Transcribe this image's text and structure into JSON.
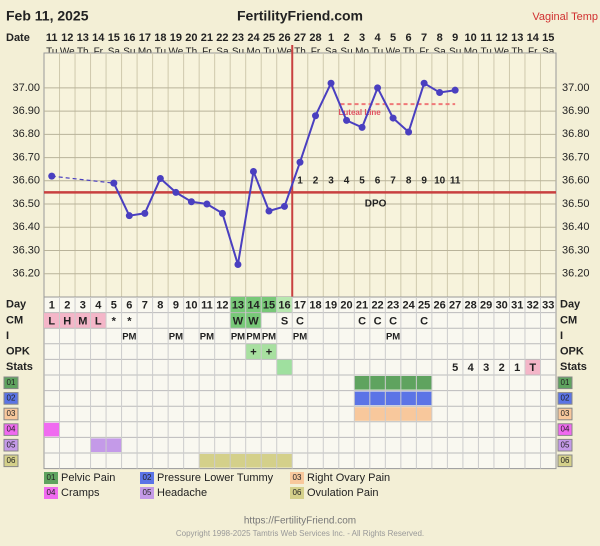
{
  "header": {
    "date": "Feb 11, 2025",
    "site": "FertilityFriend.com",
    "mode": "Vaginal Temp"
  },
  "chart_data": {
    "type": "line",
    "x_label": "Date",
    "dates": [
      11,
      12,
      13,
      14,
      15,
      16,
      17,
      18,
      19,
      20,
      21,
      22,
      23,
      24,
      25,
      26,
      27,
      28,
      1,
      2,
      3,
      4,
      5,
      6,
      7,
      8,
      9,
      10,
      11,
      12,
      13,
      14,
      15
    ],
    "weekdays": [
      "Tu",
      "We",
      "Th",
      "Fr",
      "Sa",
      "Su",
      "Mo",
      "Tu",
      "We",
      "Th",
      "Fr",
      "Sa",
      "Su",
      "Mo",
      "Tu",
      "We",
      "Th",
      "Fr",
      "Sa",
      "Su",
      "Mo",
      "Tu",
      "We",
      "Th",
      "Fr",
      "Sa",
      "Su",
      "Mo",
      "Tu",
      "We",
      "Th",
      "Fr",
      "Sa"
    ],
    "values": [
      36.62,
      null,
      null,
      null,
      36.59,
      36.45,
      36.46,
      36.61,
      36.55,
      36.51,
      36.5,
      36.46,
      36.24,
      36.64,
      36.47,
      36.49,
      36.68,
      36.88,
      37.02,
      36.86,
      36.83,
      37.0,
      36.87,
      36.81,
      37.02,
      36.98,
      36.99,
      null,
      null,
      null,
      null,
      null,
      null
    ],
    "color": "#4a3fc0",
    "ylim": [
      36.1,
      37.15
    ],
    "yticks": [
      {
        "value": 36.2,
        "label": "36.20"
      },
      {
        "value": 36.3,
        "label": "36.30"
      },
      {
        "value": 36.4,
        "label": "36.40"
      },
      {
        "value": 36.5,
        "label": "36.50"
      },
      {
        "value": 36.6,
        "label": "36.60"
      },
      {
        "value": 36.7,
        "label": "36.70"
      },
      {
        "value": 36.8,
        "label": "36.80"
      },
      {
        "value": 36.9,
        "label": "36.90"
      },
      {
        "value": 37,
        "label": "37.00"
      }
    ],
    "grid": true,
    "coverline": 36.55,
    "ovulation_day": 16,
    "luteal_line": {
      "label": "Luteal Line",
      "value": 36.93
    },
    "dpo_label": "DPO",
    "dpo": [
      null,
      null,
      null,
      null,
      null,
      null,
      null,
      null,
      null,
      null,
      null,
      null,
      null,
      null,
      null,
      null,
      1,
      2,
      3,
      4,
      5,
      6,
      7,
      8,
      9,
      10,
      11,
      null,
      null,
      null,
      null,
      null,
      null
    ]
  },
  "table": {
    "labels": {
      "day": "Day",
      "cm": "CM",
      "intercourse": "I",
      "opk": "OPK",
      "stats": "Stats"
    },
    "days": [
      1,
      2,
      3,
      4,
      5,
      6,
      7,
      8,
      9,
      10,
      11,
      12,
      13,
      14,
      15,
      16,
      17,
      18,
      19,
      20,
      21,
      22,
      23,
      24,
      25,
      26,
      27,
      28,
      29,
      30,
      31,
      32,
      33
    ],
    "day_colors": [
      null,
      null,
      null,
      null,
      null,
      null,
      null,
      null,
      null,
      null,
      null,
      null,
      "#78c878",
      "#78c878",
      "#78c878",
      "#b8e8b0",
      null,
      null,
      null,
      null,
      null,
      null,
      null,
      null,
      null,
      null,
      null,
      null,
      null,
      null,
      null,
      null,
      null
    ],
    "cm": [
      "L",
      "H",
      "M",
      "L",
      "*",
      "*",
      null,
      null,
      null,
      null,
      null,
      null,
      "W",
      "W",
      null,
      "S",
      "C",
      null,
      null,
      null,
      "C",
      "C",
      "C",
      null,
      "C",
      null,
      null,
      null,
      null,
      null,
      null,
      null,
      null
    ],
    "cm_colors": [
      "#f4b6c8",
      "#f4b6c8",
      "#f4b6c8",
      "#f4b6c8",
      null,
      null,
      null,
      null,
      null,
      null,
      null,
      null,
      "#78c878",
      "#78c878",
      null,
      null,
      null,
      null,
      null,
      null,
      null,
      null,
      null,
      null,
      null,
      null,
      null,
      null,
      null,
      null,
      null,
      null,
      null
    ],
    "intercourse": [
      null,
      null,
      null,
      null,
      null,
      "PM",
      null,
      null,
      "PM",
      null,
      "PM",
      null,
      "PM",
      "PM",
      "PM",
      null,
      "PM",
      null,
      null,
      null,
      null,
      null,
      "PM",
      null,
      null,
      null,
      null,
      null,
      null,
      null,
      null,
      null,
      null
    ],
    "opk": [
      null,
      null,
      null,
      null,
      null,
      null,
      null,
      null,
      null,
      null,
      null,
      null,
      null,
      "+",
      "+",
      null,
      null,
      null,
      null,
      null,
      null,
      null,
      null,
      null,
      null,
      null,
      null,
      null,
      null,
      null,
      null,
      null,
      null
    ],
    "opk_colors": [
      null,
      null,
      null,
      null,
      null,
      null,
      null,
      null,
      null,
      null,
      null,
      null,
      null,
      "#a8e0a0",
      "#a8e0a0",
      null,
      null,
      null,
      null,
      null,
      null,
      null,
      null,
      null,
      null,
      null,
      null,
      null,
      null,
      null,
      null,
      null,
      null
    ],
    "stats": [
      null,
      null,
      null,
      null,
      null,
      null,
      null,
      null,
      null,
      null,
      null,
      null,
      null,
      null,
      null,
      null,
      null,
      null,
      null,
      null,
      null,
      null,
      null,
      null,
      null,
      null,
      5,
      4,
      3,
      2,
      1,
      "T",
      null
    ],
    "stats_colors": [
      null,
      null,
      null,
      null,
      null,
      null,
      null,
      null,
      null,
      null,
      null,
      null,
      null,
      null,
      null,
      "#9fe09f",
      null,
      null,
      null,
      null,
      null,
      null,
      null,
      null,
      null,
      null,
      null,
      null,
      null,
      null,
      null,
      "#f4b6c8",
      null
    ],
    "symptoms": [
      {
        "code": "01",
        "name": "Pelvic Pain",
        "color": "#5fa35f",
        "days": [
          21,
          22,
          23,
          24,
          25
        ]
      },
      {
        "code": "02",
        "name": "Pressure Lower Tummy",
        "color": "#5b74e6",
        "days": [
          21,
          22,
          23,
          24,
          25
        ]
      },
      {
        "code": "03",
        "name": "Right Ovary Pain",
        "color": "#f8c89c",
        "days": [
          21,
          22,
          23,
          24,
          25
        ]
      },
      {
        "code": "04",
        "name": "Cramps",
        "color": "#f06af0",
        "days": [
          1
        ]
      },
      {
        "code": "05",
        "name": "Headache",
        "color": "#c49ae8",
        "days": [
          4,
          5
        ]
      },
      {
        "code": "06",
        "name": "Ovulation Pain",
        "color": "#d4d08a",
        "days": [
          11,
          12,
          13,
          14,
          15,
          16
        ]
      }
    ]
  },
  "footer": {
    "url": "https://FertilityFriend.com",
    "copyright": "Copyright 1998-2025 Tamtris Web Services Inc. - All Rights Reserved."
  }
}
